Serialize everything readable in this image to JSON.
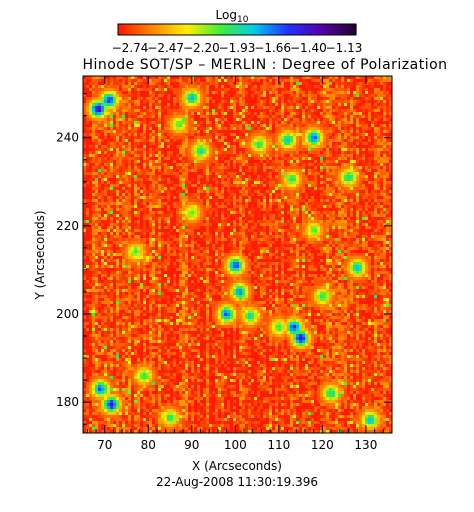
{
  "chart_data": {
    "type": "heatmap",
    "title": "Hinode SOT/SP – MERLIN : Degree of Polarization",
    "xlabel": "X (Arcseconds)",
    "ylabel": "Y (Arcseconds)",
    "timestamp": "22-Aug-2008 11:30:19.396",
    "xlim": [
      65,
      136
    ],
    "ylim": [
      173,
      254
    ],
    "xticks": [
      70,
      80,
      90,
      100,
      110,
      120,
      130
    ],
    "yticks": [
      180,
      200,
      220,
      240
    ],
    "colorbar": {
      "label": "Log",
      "label_subscript": "10",
      "range": [
        -2.88,
        -1.0
      ],
      "ticks": [
        "−2.74",
        "−2.47",
        "−2.20",
        "−1.93",
        "−1.66",
        "−1.40",
        "−1.13"
      ],
      "colors": [
        "#ff1a00",
        "#ff8800",
        "#ffee00",
        "#44ee33",
        "#00ccee",
        "#2233ff",
        "#5500aa",
        "#220033"
      ]
    },
    "features": [
      {
        "x": 68.5,
        "y": 246.5,
        "level": -1.3
      },
      {
        "x": 71.0,
        "y": 248.5,
        "level": -1.5
      },
      {
        "x": 90.0,
        "y": 249.0,
        "level": -1.8
      },
      {
        "x": 87.0,
        "y": 243.0,
        "level": -2.1
      },
      {
        "x": 92.0,
        "y": 237.0,
        "level": -1.9
      },
      {
        "x": 105.5,
        "y": 238.5,
        "level": -2.0
      },
      {
        "x": 112.0,
        "y": 239.5,
        "level": -1.8
      },
      {
        "x": 118.0,
        "y": 240.0,
        "level": -1.6
      },
      {
        "x": 113.0,
        "y": 230.5,
        "level": -2.0
      },
      {
        "x": 126.0,
        "y": 231.0,
        "level": -1.9
      },
      {
        "x": 100.0,
        "y": 211.0,
        "level": -1.5
      },
      {
        "x": 101.0,
        "y": 205.0,
        "level": -1.7
      },
      {
        "x": 98.0,
        "y": 200.0,
        "level": -1.6
      },
      {
        "x": 103.5,
        "y": 199.5,
        "level": -1.9
      },
      {
        "x": 113.5,
        "y": 197.0,
        "level": -1.5
      },
      {
        "x": 115.0,
        "y": 194.5,
        "level": -1.4
      },
      {
        "x": 110.0,
        "y": 197.0,
        "level": -2.0
      },
      {
        "x": 128.0,
        "y": 210.5,
        "level": -1.8
      },
      {
        "x": 120.0,
        "y": 204.0,
        "level": -2.0
      },
      {
        "x": 69.0,
        "y": 183.0,
        "level": -1.6
      },
      {
        "x": 71.5,
        "y": 179.5,
        "level": -1.4
      },
      {
        "x": 79.0,
        "y": 186.0,
        "level": -2.0
      },
      {
        "x": 85.0,
        "y": 176.5,
        "level": -2.0
      },
      {
        "x": 122.0,
        "y": 182.0,
        "level": -1.9
      },
      {
        "x": 131.0,
        "y": 176.0,
        "level": -1.8
      },
      {
        "x": 90.0,
        "y": 223.0,
        "level": -2.1
      },
      {
        "x": 77.0,
        "y": 214.0,
        "level": -2.1
      },
      {
        "x": 118.0,
        "y": 219.0,
        "level": -2.1
      }
    ]
  }
}
